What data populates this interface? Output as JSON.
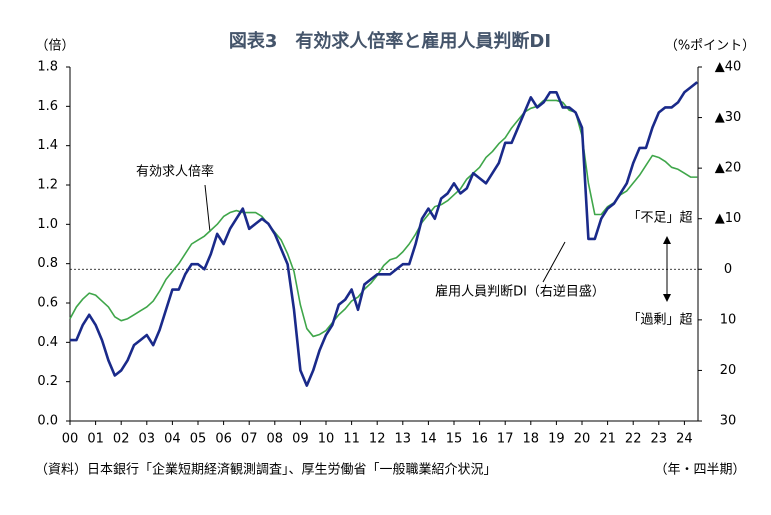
{
  "chart_data": {
    "type": "line",
    "title": "図表3　有効求人倍率と雇用人員判断DI",
    "y_label": "（倍）",
    "y2_label": "（%ポイント）",
    "x_label": "（年・四半期）",
    "source": "（資料）日本銀行「企業短期経済観測調査」、厚生労働省「一般職業紹介状況」",
    "annotations": [
      "有効求人倍率",
      "雇用人員判断DI（右逆目盛）",
      "「不足」超",
      "「過剰」超"
    ],
    "categories": [
      "00",
      null,
      null,
      null,
      "01",
      null,
      null,
      null,
      "02",
      null,
      null,
      null,
      "03",
      null,
      null,
      null,
      "04",
      null,
      null,
      null,
      "05",
      null,
      null,
      null,
      "06",
      null,
      null,
      null,
      "07",
      null,
      null,
      null,
      "08",
      null,
      null,
      null,
      "09",
      null,
      null,
      null,
      "10",
      null,
      null,
      null,
      "11",
      null,
      null,
      null,
      "12",
      null,
      null,
      null,
      "13",
      null,
      null,
      null,
      "14",
      null,
      null,
      null,
      "15",
      null,
      null,
      null,
      "16",
      null,
      null,
      null,
      "17",
      null,
      null,
      null,
      "18",
      null,
      null,
      null,
      "19",
      null,
      null,
      null,
      "20",
      null,
      null,
      null,
      "21",
      null,
      null,
      null,
      "22",
      null,
      null,
      null,
      "23",
      null,
      null,
      null,
      "24",
      null,
      null
    ],
    "series": [
      {
        "name": "有効求人倍率",
        "color": "#3fa64a",
        "axis": "y",
        "values": [
          0.52,
          0.58,
          0.62,
          0.65,
          0.64,
          0.61,
          0.58,
          0.53,
          0.51,
          0.52,
          0.54,
          0.56,
          0.58,
          0.61,
          0.66,
          0.72,
          0.76,
          0.8,
          0.85,
          0.9,
          0.92,
          0.94,
          0.97,
          1.0,
          1.04,
          1.06,
          1.07,
          1.06,
          1.06,
          1.06,
          1.04,
          1.0,
          0.96,
          0.92,
          0.85,
          0.76,
          0.59,
          0.47,
          0.43,
          0.44,
          0.46,
          0.5,
          0.54,
          0.57,
          0.61,
          0.63,
          0.67,
          0.7,
          0.74,
          0.79,
          0.82,
          0.83,
          0.86,
          0.9,
          0.95,
          1.01,
          1.05,
          1.09,
          1.1,
          1.12,
          1.15,
          1.18,
          1.23,
          1.26,
          1.29,
          1.34,
          1.37,
          1.41,
          1.44,
          1.49,
          1.53,
          1.57,
          1.59,
          1.6,
          1.63,
          1.63,
          1.63,
          1.62,
          1.58,
          1.57,
          1.45,
          1.21,
          1.05,
          1.05,
          1.09,
          1.11,
          1.15,
          1.17,
          1.21,
          1.25,
          1.3,
          1.35,
          1.34,
          1.32,
          1.29,
          1.28,
          1.26,
          1.24,
          1.24
        ]
      },
      {
        "name": "雇用人員判断DI",
        "color": "#1a2a8a",
        "axis": "y2",
        "values": [
          14,
          14,
          11,
          9,
          11,
          14,
          18,
          21,
          20,
          18,
          15,
          14,
          13,
          15,
          12,
          8,
          4,
          4,
          1,
          -1,
          -1,
          0,
          -3,
          -7,
          -5,
          -8,
          -10,
          -12,
          -8,
          -9,
          -10,
          -9,
          -7,
          -4,
          -1,
          8,
          20,
          23,
          20,
          16,
          13,
          11,
          7,
          6,
          4,
          8,
          3,
          2,
          1,
          1,
          1,
          0,
          -1,
          -1,
          -5,
          -10,
          -12,
          -10,
          -14,
          -15,
          -17,
          -15,
          -16,
          -19,
          -18,
          -17,
          -19,
          -21,
          -25,
          -25,
          -28,
          -31,
          -34,
          -32,
          -33,
          -35,
          -35,
          -32,
          -32,
          -31,
          -28,
          -6,
          -6,
          -10,
          -12,
          -13,
          -15,
          -17,
          -21,
          -24,
          -24,
          -28,
          -31,
          -32,
          -32,
          -33,
          -35,
          -36,
          -37
        ]
      }
    ],
    "ylim": [
      0,
      1.8
    ],
    "yticks": [
      {
        "value": 0,
        "label": "0.0"
      },
      0.2,
      0.4,
      0.6,
      0.8,
      {
        "value": 1,
        "label": "1.0"
      },
      1.2,
      1.4,
      1.6,
      1.8
    ],
    "y2lim": [
      -40,
      30
    ],
    "y2_reversed": true,
    "y2ticks": [
      {
        "value": -40,
        "label": "▲40"
      },
      {
        "value": -30,
        "label": "▲30"
      },
      {
        "value": -20,
        "label": "▲20"
      },
      {
        "value": -10,
        "label": "▲10"
      },
      0,
      10,
      20,
      30
    ],
    "grid": false
  }
}
